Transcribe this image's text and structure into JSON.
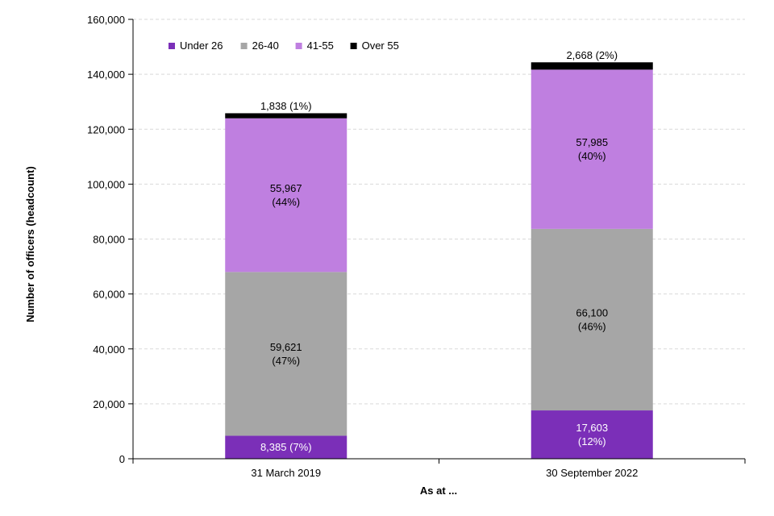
{
  "chart_data": {
    "type": "bar",
    "stacked": true,
    "categories": [
      "31 March 2019",
      "30 September 2022"
    ],
    "series": [
      {
        "name": "Under 26",
        "color": "#7b2fb8",
        "values": [
          8385,
          17603
        ],
        "labels": [
          "8,385 (7%)",
          "17,603\n(12%)"
        ],
        "label_color": "#ffffff"
      },
      {
        "name": "26-40",
        "color": "#a6a6a6",
        "values": [
          59621,
          66100
        ],
        "labels": [
          "59,621\n(47%)",
          "66,100\n(46%)"
        ],
        "label_color": "#000000"
      },
      {
        "name": "41-55",
        "color": "#bf7fe0",
        "values": [
          55967,
          57985
        ],
        "labels": [
          "55,967\n(44%)",
          "57,985\n(40%)"
        ],
        "label_color": "#000000"
      },
      {
        "name": "Over 55",
        "color": "#000000",
        "values": [
          1838,
          2668
        ],
        "labels": [
          "1,838 (1%)",
          "2,668 (2%)"
        ],
        "label_color": "#000000",
        "label_position": "above"
      }
    ],
    "xlabel": "As at ...",
    "ylabel": "Number of officers (headcount)",
    "ylim": [
      0,
      160000
    ],
    "yticks": [
      0,
      20000,
      40000,
      60000,
      80000,
      100000,
      120000,
      140000,
      160000
    ],
    "ytick_labels": [
      "0",
      "20,000",
      "40,000",
      "60,000",
      "80,000",
      "100,000",
      "120,000",
      "140,000",
      "160,000"
    ],
    "grid": true,
    "legend_position": "top-left"
  }
}
